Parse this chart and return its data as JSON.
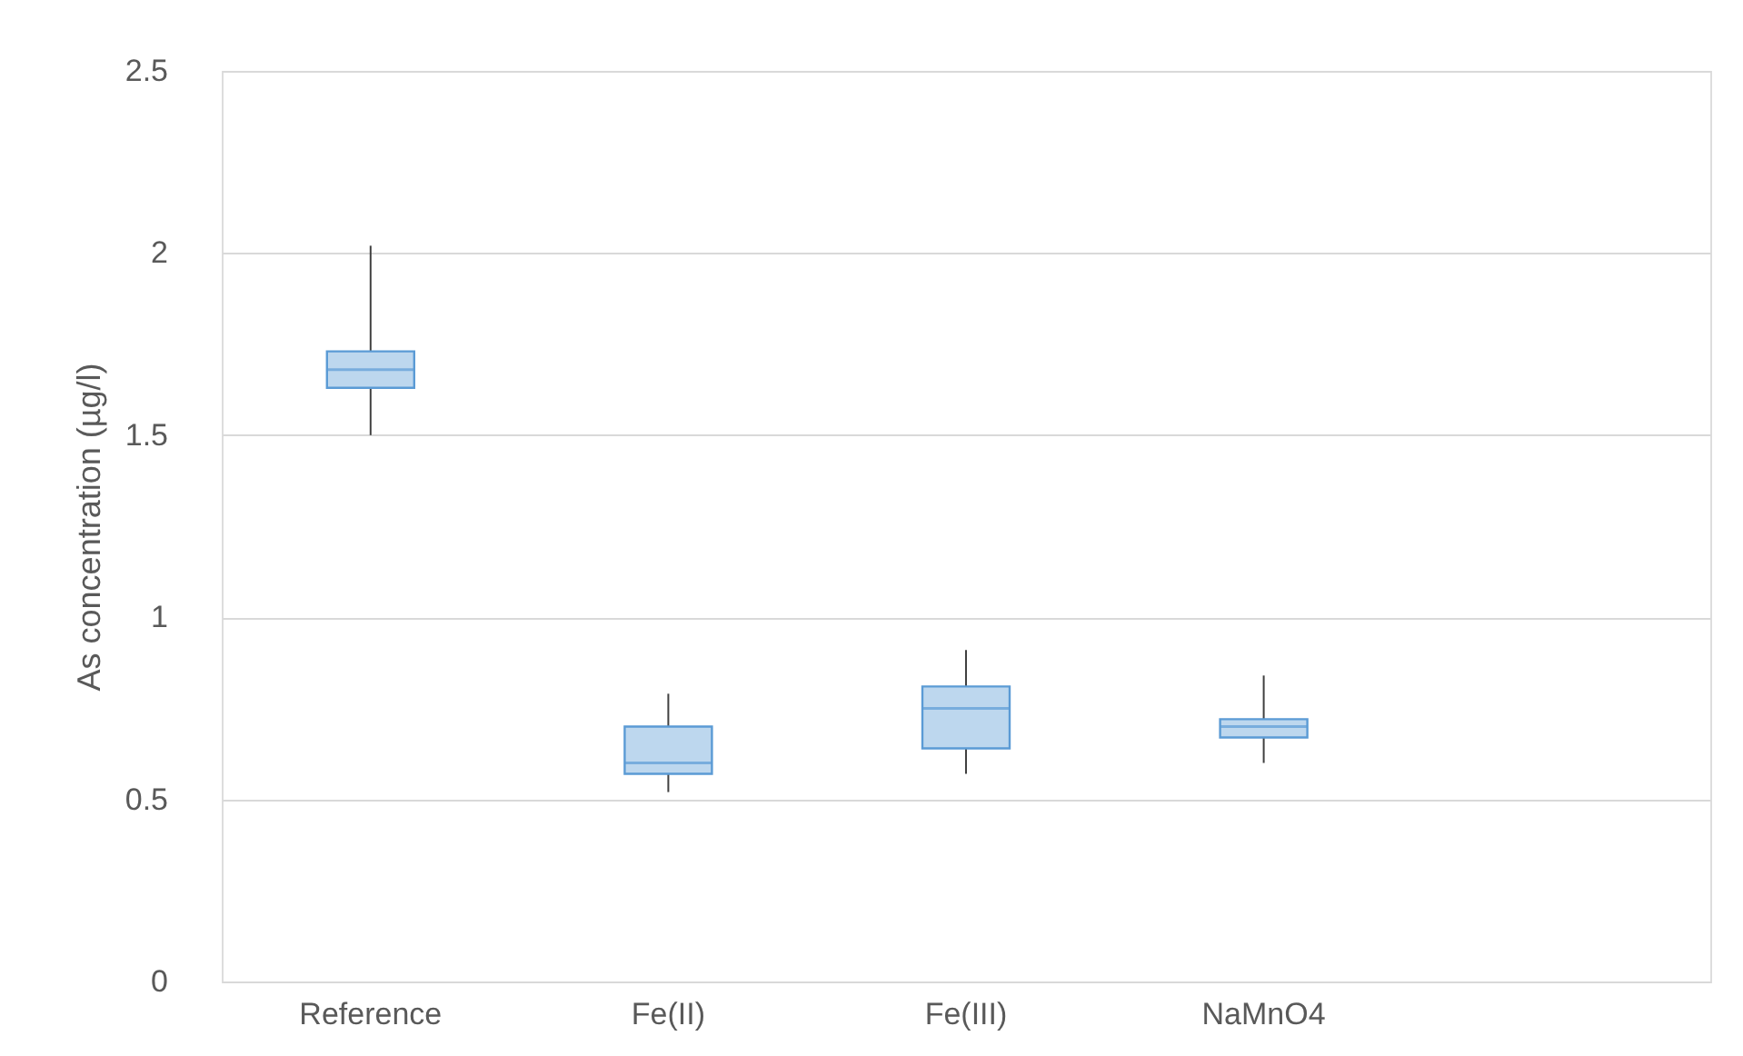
{
  "chart_data": {
    "type": "box",
    "ylabel": "As concentration (µg/l)",
    "categories": [
      "Reference",
      "Fe(II)",
      "Fe(III)",
      "NaMnO4",
      null
    ],
    "boxes": [
      {
        "low": 1.5,
        "q1": 1.63,
        "median": 1.68,
        "q3": 1.73,
        "high": 2.02
      },
      {
        "low": 0.52,
        "q1": 0.57,
        "median": 0.6,
        "q3": 0.7,
        "high": 0.79
      },
      {
        "low": 0.57,
        "q1": 0.64,
        "median": 0.75,
        "q3": 0.81,
        "high": 0.91
      },
      {
        "low": 0.6,
        "q1": 0.67,
        "median": 0.7,
        "q3": 0.72,
        "high": 0.84
      },
      null
    ],
    "color": "#bdd7ee",
    "ylim": [
      0,
      2.5
    ],
    "yticks": [
      0,
      0.5,
      1,
      1.5,
      2,
      2.5
    ],
    "grid": "y"
  }
}
